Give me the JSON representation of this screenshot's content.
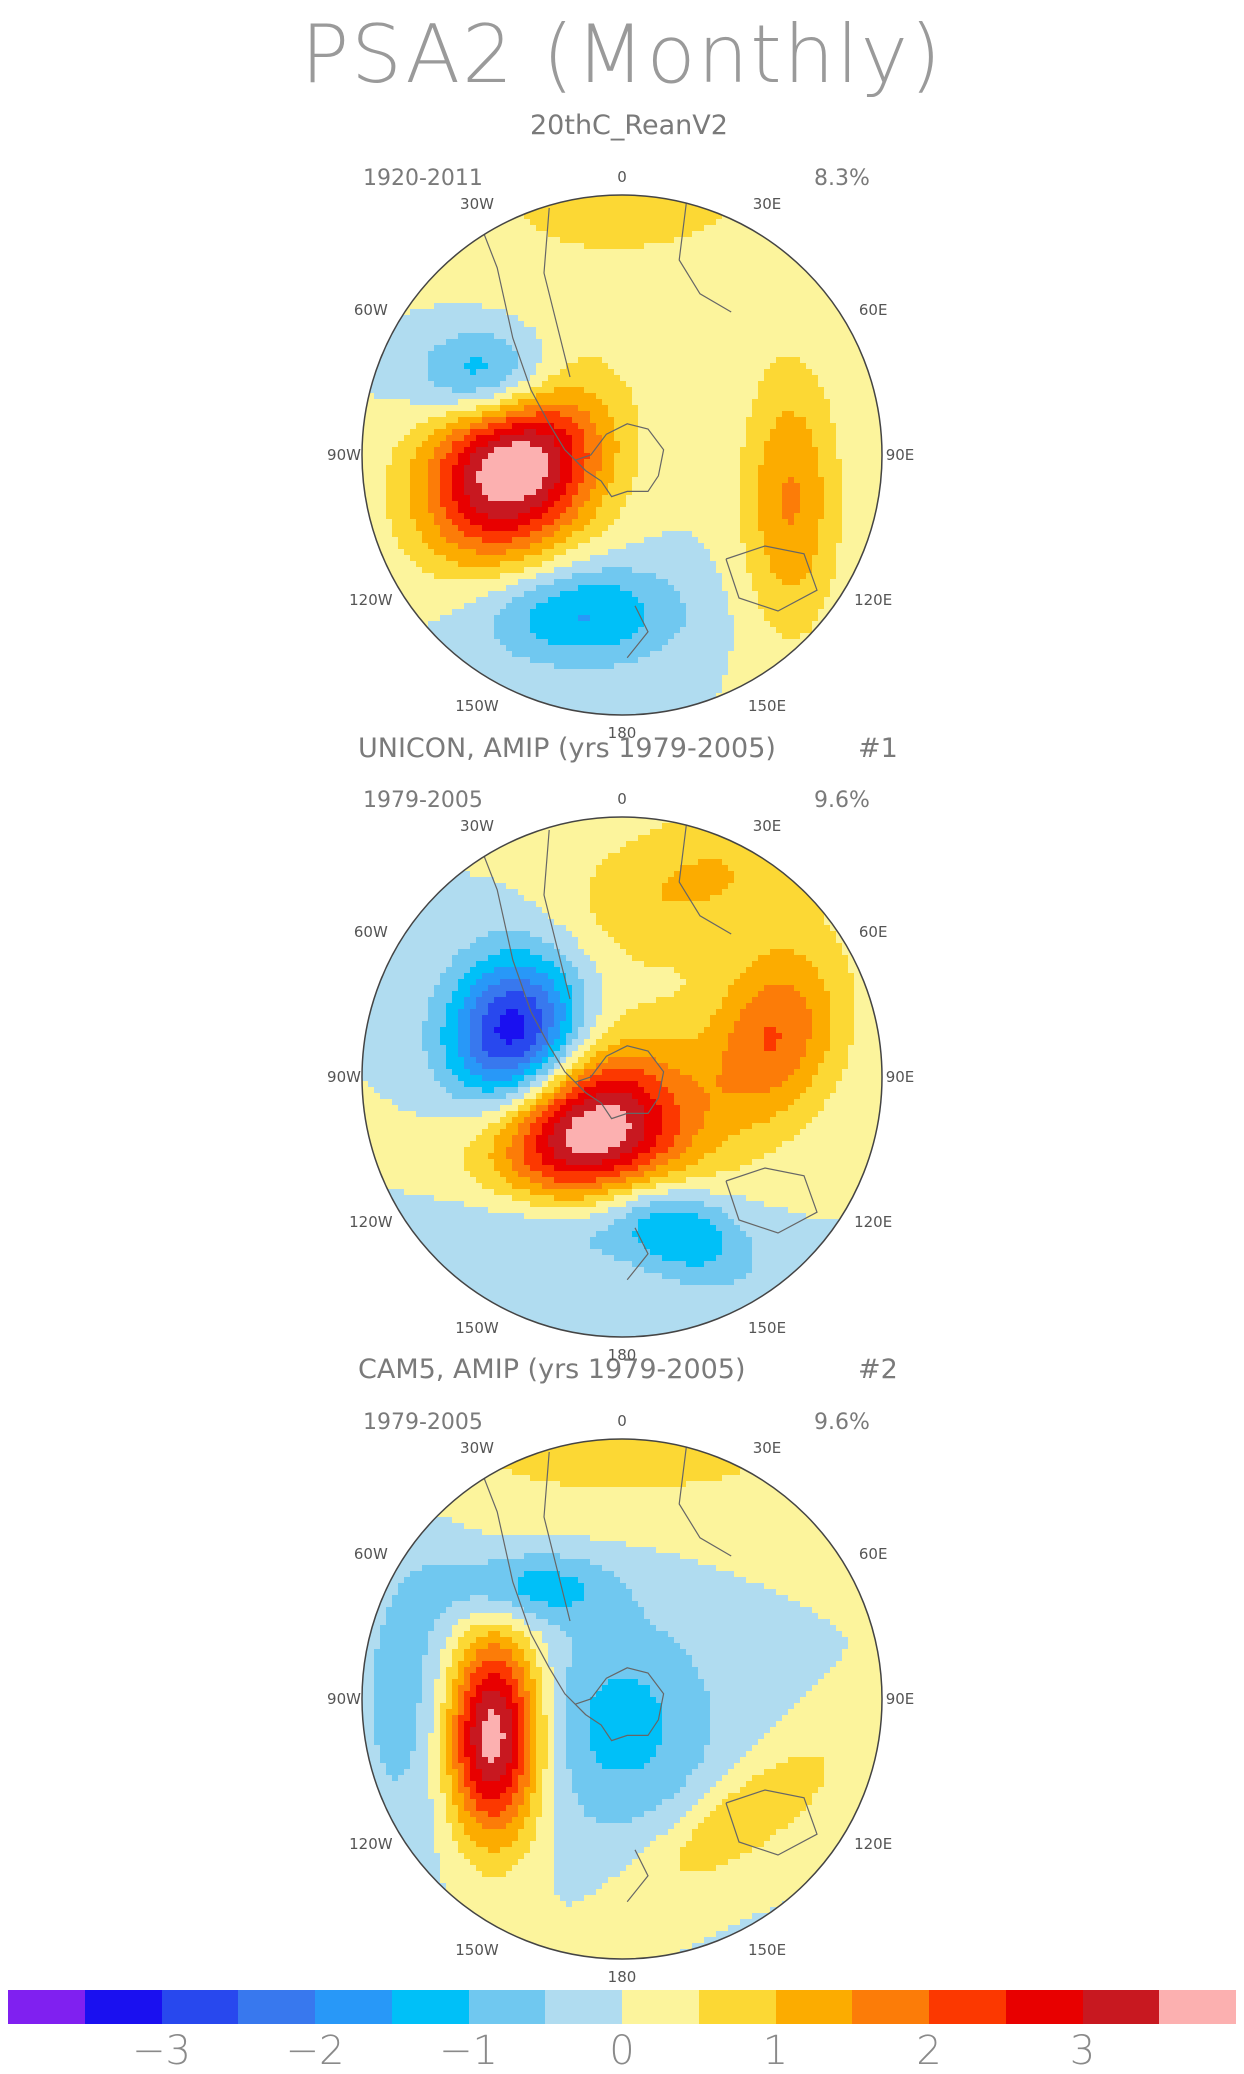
{
  "title": "PSA2 (Monthly)",
  "panels": [
    {
      "title": "20thC_ReanV2",
      "tag": "",
      "years": "1920-2011",
      "percent": "8.3%",
      "features": [
        {
          "name": "pos-core",
          "lon": 265,
          "r": 0.42,
          "sx": 0.22,
          "sy": 0.27,
          "rot": 35,
          "amp": 4.2
        },
        {
          "name": "neg-bell",
          "lon": 300,
          "r": 0.57,
          "sx": 0.19,
          "sy": 0.14,
          "rot": 0,
          "amp": -2.3
        },
        {
          "name": "neg-ross",
          "lon": 195,
          "r": 0.63,
          "sx": 0.27,
          "sy": 0.14,
          "rot": 0,
          "amp": -1.6
        },
        {
          "name": "pos-east",
          "lon": 105,
          "r": 0.67,
          "sx": 0.13,
          "sy": 0.36,
          "rot": 0,
          "amp": 1.55
        },
        {
          "name": "pos-north",
          "lon": 0,
          "r": 1.05,
          "sx": 0.55,
          "sy": 0.3,
          "rot": 0,
          "amp": 0.7
        }
      ]
    },
    {
      "title": "UNICON, AMIP (yrs 1979-2005)",
      "tag": "#1",
      "years": "1979-2005",
      "percent": "9.6%",
      "features": [
        {
          "name": "neg-bell",
          "lon": 290,
          "r": 0.44,
          "sx": 0.18,
          "sy": 0.23,
          "rot": 10,
          "amp": -3.6
        },
        {
          "name": "pos-core",
          "lon": 215,
          "r": 0.26,
          "sx": 0.27,
          "sy": 0.2,
          "rot": 0,
          "amp": 4.0
        },
        {
          "name": "pos-east",
          "lon": 75,
          "r": 0.6,
          "sx": 0.18,
          "sy": 0.26,
          "rot": 20,
          "amp": 2.0
        },
        {
          "name": "pos-band",
          "lon": 20,
          "r": 0.8,
          "sx": 0.4,
          "sy": 0.2,
          "rot": -20,
          "amp": 1.05
        },
        {
          "name": "pos-center",
          "lon": 60,
          "r": 0.05,
          "sx": 0.18,
          "sy": 0.22,
          "rot": 0,
          "amp": 0.6
        },
        {
          "name": "neg-ross",
          "lon": 160,
          "r": 0.62,
          "sx": 0.22,
          "sy": 0.12,
          "rot": 30,
          "amp": -1.4
        },
        {
          "name": "neg-ross2",
          "lon": 200,
          "r": 0.62,
          "sx": 0.32,
          "sy": 0.12,
          "rot": 0,
          "amp": -0.9
        }
      ]
    },
    {
      "title": "CAM5, AMIP (yrs 1979-2005)",
      "tag": "#2",
      "years": "1979-2005",
      "percent": "9.6%",
      "features": [
        {
          "name": "pos-core",
          "lon": 255,
          "r": 0.52,
          "sx": 0.13,
          "sy": 0.28,
          "rot": 0,
          "amp": 4.3
        },
        {
          "name": "neg-bell",
          "lon": 320,
          "r": 0.56,
          "sx": 0.22,
          "sy": 0.1,
          "rot": 0,
          "amp": -1.3
        },
        {
          "name": "neg-center",
          "lon": 180,
          "r": 0.1,
          "sx": 0.26,
          "sy": 0.3,
          "rot": 0,
          "amp": -1.2
        },
        {
          "name": "neg-ring",
          "lon": 270,
          "r": 0.75,
          "sx": 0.2,
          "sy": 0.4,
          "rot": 0,
          "amp": -0.9
        },
        {
          "name": "pos-east",
          "lon": 135,
          "r": 0.65,
          "sx": 0.32,
          "sy": 0.11,
          "rot": -35,
          "amp": 1.05
        },
        {
          "name": "pos-north",
          "lon": 0,
          "r": 1.05,
          "sx": 0.7,
          "sy": 0.25,
          "rot": 0,
          "amp": 0.8
        }
      ]
    }
  ],
  "lon_labels": [
    "0",
    "30E",
    "60E",
    "90E",
    "120E",
    "150E",
    "180",
    "150W",
    "120W",
    "90W",
    "60W",
    "30W"
  ],
  "colorbar": {
    "colors": [
      "#8020f0",
      "#1a10f0",
      "#2848ee",
      "#3878ee",
      "#2898f8",
      "#00c0f8",
      "#70c8f0",
      "#b0dcf0",
      "#fcf49c",
      "#fcd834",
      "#fcac00",
      "#fc7c08",
      "#fc3800",
      "#e80000",
      "#c81820",
      "#fcb0b0"
    ],
    "labels": [
      "-3",
      "-2",
      "-1",
      "0",
      "1",
      "2",
      "3"
    ],
    "levels": [
      -3.5,
      -3,
      -2.5,
      -2,
      -1.5,
      -1,
      -0.5,
      0,
      0.5,
      1,
      1.5,
      2,
      2.5,
      3,
      3.5
    ]
  }
}
